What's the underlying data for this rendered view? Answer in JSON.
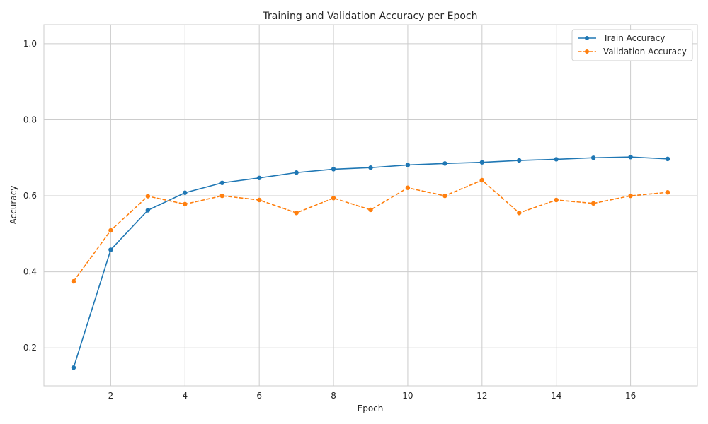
{
  "chart_data": {
    "type": "line",
    "title": "Training and Validation Accuracy per Epoch",
    "xlabel": "Epoch",
    "ylabel": "Accuracy",
    "xlim": [
      0.2,
      17.8
    ],
    "ylim": [
      0.1,
      1.05
    ],
    "xticks": [
      2,
      4,
      6,
      8,
      10,
      12,
      14,
      16
    ],
    "yticks": [
      0.2,
      0.4,
      0.6,
      0.8,
      1.0
    ],
    "ytick_labels": [
      "0.2",
      "0.4",
      "0.6",
      "0.8",
      "1.0"
    ],
    "grid": true,
    "legend_position": "top-right",
    "x": [
      1,
      2,
      3,
      4,
      5,
      6,
      7,
      8,
      9,
      10,
      11,
      12,
      13,
      14,
      15,
      16,
      17
    ],
    "series": [
      {
        "name": "Train Accuracy",
        "color": "#1f77b4",
        "line_style": "solid",
        "marker": "circle",
        "values": [
          0.148,
          0.458,
          0.562,
          0.608,
          0.634,
          0.647,
          0.661,
          0.67,
          0.674,
          0.681,
          0.685,
          0.688,
          0.693,
          0.696,
          0.7,
          0.702,
          0.697
        ]
      },
      {
        "name": "Validation Accuracy",
        "color": "#ff7f0e",
        "line_style": "dashed",
        "marker": "circle",
        "values": [
          0.375,
          0.509,
          0.599,
          0.578,
          0.6,
          0.589,
          0.555,
          0.594,
          0.563,
          0.621,
          0.6,
          0.641,
          0.555,
          0.589,
          0.58,
          0.6,
          0.609
        ]
      }
    ]
  }
}
